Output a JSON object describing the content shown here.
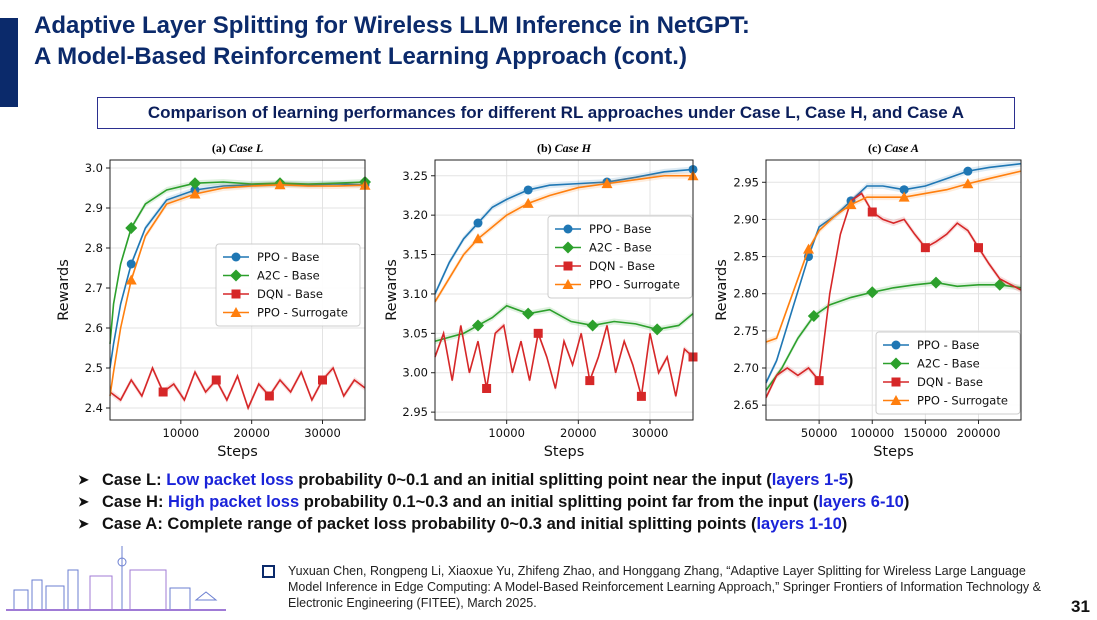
{
  "slide": {
    "title_line1": "Adaptive Layer Splitting for Wireless LLM Inference in NetGPT:",
    "title_line2": "A Model-Based Reinforcement Learning Approach (cont.)",
    "subtitle": "Comparison of learning performances for different RL approaches under Case L, Case H, and Case A",
    "page_number": "31",
    "accent_color": "#0b2a6b",
    "highlight_color": "#1a23d9"
  },
  "bullets": [
    {
      "prefix": "Case L: ",
      "highlight": "Low packet loss",
      "text": " probability 0~0.1 and an initial splitting point near the input (",
      "highlight2": "layers 1-5",
      "suffix": ")"
    },
    {
      "prefix": "Case H: ",
      "highlight": "High packet loss",
      "text": " probability 0.1~0.3 and an initial splitting point far from the input (",
      "highlight2": "layers 6-10",
      "suffix": ")"
    },
    {
      "prefix": "Case A: Complete range of packet loss probability 0~0.3 and initial splitting points (",
      "highlight": "",
      "text": "",
      "highlight2": "layers 1-10",
      "suffix": ")"
    }
  ],
  "reference": "Yuxuan Chen, Rongpeng Li, Xiaoxue Yu, Zhifeng Zhao, and Honggang Zhang, “Adaptive Layer Splitting for Wireless Large Language Model Inference in Edge Computing: A Model-Based Reinforcement Learning Approach,” Springer Frontiers of Information Technology & Electronic Engineering (FITEE), March 2025.",
  "chart_data": [
    {
      "type": "line",
      "panel": "(a)",
      "title": "Case L",
      "xlabel": "Steps",
      "ylabel": "Rewards",
      "xlim": [
        0,
        36000
      ],
      "ylim": [
        2.37,
        3.02
      ],
      "xticks": [
        10000,
        20000,
        30000
      ],
      "xtick_labels": [
        "10000",
        "20000",
        "30000"
      ],
      "yticks": [
        2.4,
        2.5,
        2.6,
        2.7,
        2.8,
        2.9,
        3.0
      ],
      "ytick_labels": [
        "2.4",
        "2.5",
        "2.6",
        "2.7",
        "2.8",
        "2.9",
        "3.0"
      ],
      "legend_position": "center-right",
      "series": [
        {
          "name": "PPO - Base",
          "color": "#1f77b4",
          "marker": "circle",
          "x": [
            0,
            500,
            1500,
            3000,
            5000,
            8000,
            12000,
            16000,
            20000,
            24000,
            28000,
            32000,
            36000
          ],
          "y": [
            2.5,
            2.56,
            2.66,
            2.76,
            2.85,
            2.92,
            2.945,
            2.955,
            2.958,
            2.96,
            2.958,
            2.96,
            2.958
          ]
        },
        {
          "name": "A2C - Base",
          "color": "#2ca02c",
          "marker": "diamond",
          "x": [
            0,
            500,
            1500,
            3000,
            5000,
            8000,
            12000,
            16000,
            20000,
            24000,
            28000,
            32000,
            36000
          ],
          "y": [
            2.56,
            2.66,
            2.76,
            2.85,
            2.91,
            2.945,
            2.962,
            2.965,
            2.96,
            2.962,
            2.96,
            2.962,
            2.965
          ]
        },
        {
          "name": "DQN - Base",
          "color": "#d62728",
          "marker": "square",
          "x": [
            0,
            1500,
            3000,
            4500,
            6000,
            7500,
            9000,
            10500,
            12000,
            13500,
            15000,
            16500,
            18000,
            19500,
            21000,
            22500,
            24000,
            25500,
            27000,
            28500,
            30000,
            31500,
            33000,
            34500,
            36000
          ],
          "y": [
            2.44,
            2.42,
            2.47,
            2.43,
            2.5,
            2.44,
            2.46,
            2.42,
            2.49,
            2.44,
            2.47,
            2.42,
            2.48,
            2.4,
            2.46,
            2.43,
            2.47,
            2.44,
            2.49,
            2.42,
            2.47,
            2.5,
            2.43,
            2.47,
            2.45
          ]
        },
        {
          "name": "PPO - Surrogate",
          "color": "#ff7f0e",
          "marker": "triangle",
          "x": [
            0,
            500,
            1500,
            3000,
            5000,
            8000,
            12000,
            16000,
            20000,
            24000,
            28000,
            32000,
            36000
          ],
          "y": [
            2.43,
            2.49,
            2.6,
            2.72,
            2.83,
            2.91,
            2.935,
            2.95,
            2.955,
            2.958,
            2.955,
            2.955,
            2.957
          ]
        }
      ]
    },
    {
      "type": "line",
      "panel": "(b)",
      "title": "Case H",
      "xlabel": "Steps",
      "ylabel": "Rewards",
      "xlim": [
        0,
        36000
      ],
      "ylim": [
        2.94,
        3.27
      ],
      "xticks": [
        10000,
        20000,
        30000
      ],
      "xtick_labels": [
        "10000",
        "20000",
        "30000"
      ],
      "yticks": [
        2.95,
        3.0,
        3.05,
        3.1,
        3.15,
        3.2,
        3.25
      ],
      "ytick_labels": [
        "2.95",
        "3.00",
        "3.05",
        "3.10",
        "3.15",
        "3.20",
        "3.25"
      ],
      "legend_position": "top-right",
      "series": [
        {
          "name": "PPO - Base",
          "color": "#1f77b4",
          "marker": "circle",
          "x": [
            0,
            2000,
            4000,
            6000,
            8000,
            10000,
            13000,
            16000,
            20000,
            24000,
            28000,
            32000,
            36000
          ],
          "y": [
            3.1,
            3.14,
            3.17,
            3.19,
            3.21,
            3.22,
            3.232,
            3.238,
            3.24,
            3.242,
            3.248,
            3.255,
            3.258
          ]
        },
        {
          "name": "A2C - Base",
          "color": "#2ca02c",
          "marker": "diamond",
          "x": [
            0,
            2000,
            4000,
            6000,
            8000,
            10000,
            13000,
            16000,
            19000,
            22000,
            25000,
            28000,
            31000,
            34000,
            36000
          ],
          "y": [
            3.04,
            3.045,
            3.05,
            3.06,
            3.07,
            3.085,
            3.075,
            3.08,
            3.065,
            3.06,
            3.065,
            3.062,
            3.055,
            3.06,
            3.075
          ]
        },
        {
          "name": "DQN - Base",
          "color": "#d62728",
          "marker": "square",
          "x": [
            0,
            1200,
            2400,
            3600,
            4800,
            6000,
            7200,
            8400,
            9600,
            10800,
            12000,
            13200,
            14400,
            15600,
            16800,
            18000,
            19200,
            20400,
            21600,
            22800,
            24000,
            25200,
            26400,
            27600,
            28800,
            30000,
            31200,
            32400,
            33600,
            34800,
            36000
          ],
          "y": [
            3.02,
            3.05,
            2.99,
            3.06,
            3.0,
            3.04,
            2.98,
            3.05,
            3.06,
            3.0,
            3.04,
            2.99,
            3.05,
            3.02,
            2.98,
            3.04,
            3.01,
            3.05,
            2.99,
            3.02,
            3.06,
            3.0,
            3.04,
            3.01,
            2.97,
            3.05,
            3.0,
            3.02,
            2.97,
            3.03,
            3.02
          ]
        },
        {
          "name": "PPO - Surrogate",
          "color": "#ff7f0e",
          "marker": "triangle",
          "x": [
            0,
            2000,
            4000,
            6000,
            8000,
            10000,
            13000,
            16000,
            20000,
            24000,
            28000,
            32000,
            36000
          ],
          "y": [
            3.09,
            3.12,
            3.15,
            3.17,
            3.185,
            3.2,
            3.215,
            3.225,
            3.235,
            3.24,
            3.245,
            3.25,
            3.25
          ]
        }
      ]
    },
    {
      "type": "line",
      "panel": "(c)",
      "title": "Case A",
      "xlabel": "Steps",
      "ylabel": "Rewards",
      "xlim": [
        0,
        240000
      ],
      "ylim": [
        2.63,
        2.98
      ],
      "xticks": [
        50000,
        100000,
        150000,
        200000
      ],
      "xtick_labels": [
        "50000",
        "100000",
        "150000",
        "200000"
      ],
      "yticks": [
        2.65,
        2.7,
        2.75,
        2.8,
        2.85,
        2.9,
        2.95
      ],
      "ytick_labels": [
        "2.65",
        "2.70",
        "2.75",
        "2.80",
        "2.85",
        "2.90",
        "2.95"
      ],
      "legend_position": "bottom-right",
      "series": [
        {
          "name": "PPO - Base",
          "color": "#1f77b4",
          "marker": "circle",
          "x": [
            0,
            10000,
            25000,
            40000,
            50000,
            65000,
            80000,
            95000,
            110000,
            130000,
            150000,
            170000,
            190000,
            210000,
            240000
          ],
          "y": [
            2.68,
            2.71,
            2.78,
            2.85,
            2.89,
            2.905,
            2.925,
            2.945,
            2.945,
            2.94,
            2.945,
            2.955,
            2.965,
            2.97,
            2.975
          ]
        },
        {
          "name": "A2C - Base",
          "color": "#2ca02c",
          "marker": "diamond",
          "x": [
            0,
            15000,
            30000,
            45000,
            60000,
            80000,
            100000,
            120000,
            140000,
            160000,
            180000,
            200000,
            220000,
            240000
          ],
          "y": [
            2.67,
            2.7,
            2.74,
            2.77,
            2.785,
            2.795,
            2.802,
            2.808,
            2.812,
            2.815,
            2.81,
            2.812,
            2.812,
            2.808
          ]
        },
        {
          "name": "DQN - Base",
          "color": "#d62728",
          "marker": "square",
          "x": [
            0,
            10000,
            20000,
            30000,
            40000,
            50000,
            60000,
            70000,
            80000,
            90000,
            100000,
            110000,
            120000,
            130000,
            140000,
            150000,
            160000,
            170000,
            180000,
            190000,
            200000,
            210000,
            220000,
            240000
          ],
          "y": [
            2.66,
            2.69,
            2.7,
            2.69,
            2.7,
            2.683,
            2.8,
            2.88,
            2.925,
            2.935,
            2.91,
            2.9,
            2.895,
            2.9,
            2.88,
            2.862,
            2.87,
            2.88,
            2.895,
            2.885,
            2.862,
            2.84,
            2.82,
            2.805
          ]
        },
        {
          "name": "PPO - Surrogate",
          "color": "#ff7f0e",
          "marker": "triangle",
          "x": [
            0,
            10000,
            25000,
            40000,
            50000,
            65000,
            80000,
            95000,
            110000,
            130000,
            150000,
            170000,
            190000,
            210000,
            240000
          ],
          "y": [
            2.735,
            2.74,
            2.8,
            2.86,
            2.885,
            2.905,
            2.92,
            2.93,
            2.93,
            2.93,
            2.935,
            2.94,
            2.948,
            2.955,
            2.965
          ]
        }
      ]
    }
  ]
}
